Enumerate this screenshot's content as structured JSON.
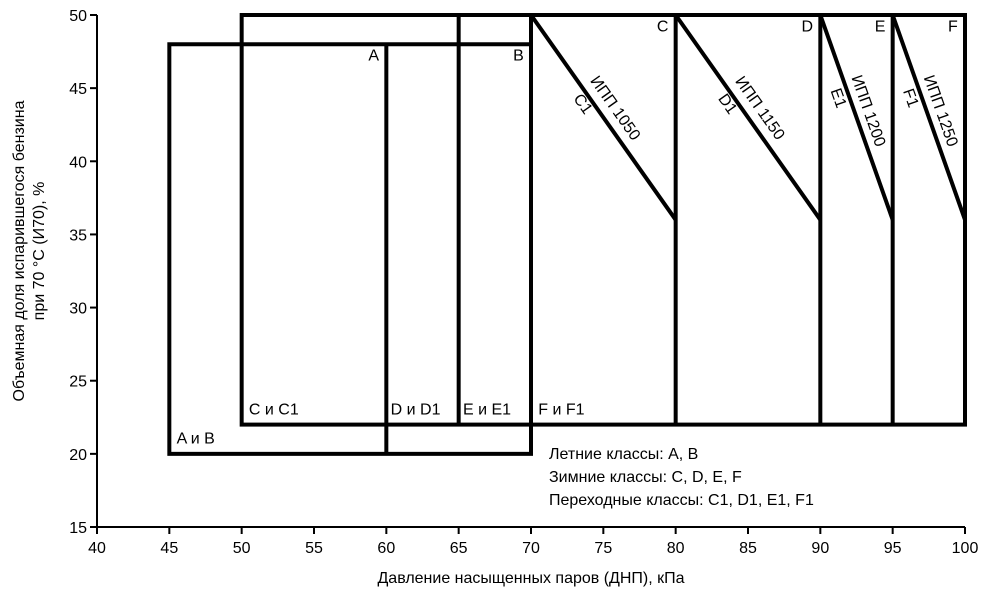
{
  "chart_data": {
    "type": "region-diagram",
    "xlabel": "Давление насыщенных паров (ДНП), кПа",
    "ylabel_lines": [
      "Объемная доля испарившегося бензина",
      "при 70 °C (И70), %"
    ],
    "xlim": [
      40,
      100
    ],
    "ylim": [
      15,
      50
    ],
    "xticks": [
      "40",
      "45",
      "50",
      "55",
      "60",
      "65",
      "70",
      "75",
      "80",
      "85",
      "90",
      "95",
      "100"
    ],
    "yticks": [
      "15",
      "20",
      "25",
      "30",
      "35",
      "40",
      "45",
      "50"
    ],
    "regions": [
      {
        "id": "A-B",
        "x": [
          45,
          70
        ],
        "y": [
          20,
          48
        ]
      },
      {
        "id": "C-F",
        "x": [
          50,
          100
        ],
        "y": [
          22,
          50
        ]
      }
    ],
    "dividers": [
      {
        "x": 60,
        "y": [
          20,
          48
        ]
      },
      {
        "x": 65,
        "y": [
          22,
          50
        ]
      },
      {
        "x": 70,
        "y": [
          22,
          50
        ]
      },
      {
        "x": 80,
        "y": [
          22,
          50
        ]
      },
      {
        "x": 90,
        "y": [
          22,
          50
        ]
      },
      {
        "x": 95,
        "y": [
          22,
          50
        ]
      }
    ],
    "diagonals": [
      {
        "from": [
          70,
          50
        ],
        "to": [
          80,
          36
        ]
      },
      {
        "from": [
          80,
          50
        ],
        "to": [
          90,
          36
        ]
      },
      {
        "from": [
          90,
          50
        ],
        "to": [
          95,
          36
        ]
      },
      {
        "from": [
          95,
          50
        ],
        "to": [
          100,
          36
        ]
      }
    ],
    "class_labels": [
      {
        "text": "A",
        "x": 59.5,
        "y": 47.6
      },
      {
        "text": "B",
        "x": 69.5,
        "y": 47.6
      },
      {
        "text": "C",
        "x": 79.5,
        "y": 49.6
      },
      {
        "text": "D",
        "x": 89.5,
        "y": 49.6
      },
      {
        "text": "E",
        "x": 94.5,
        "y": 49.6
      },
      {
        "text": "F",
        "x": 99.5,
        "y": 49.6
      },
      {
        "text": "A и B",
        "x": 45.5,
        "y": 20.7
      },
      {
        "text": "C и C1",
        "x": 50.5,
        "y": 22.7
      },
      {
        "text": "D и D1",
        "x": 60.3,
        "y": 22.7
      },
      {
        "text": "E и E1",
        "x": 65.3,
        "y": 22.7
      },
      {
        "text": "F и F1",
        "x": 70.5,
        "y": 22.7
      }
    ],
    "diag_labels": [
      {
        "top": "ИПП 1050",
        "bottom": "C1",
        "x": 75.2,
        "y": 43.2
      },
      {
        "top": "ИПП 1150",
        "bottom": "D1",
        "x": 85.2,
        "y": 43.2
      },
      {
        "top": "ИПП 1200",
        "bottom": "E1",
        "x": 92.6,
        "y": 43.2
      },
      {
        "top": "ИПП 1250",
        "bottom": "F1",
        "x": 97.6,
        "y": 43.2
      }
    ],
    "notes": [
      "Летние классы: A, B",
      "Зимние классы: C, D, E, F",
      "Переходные классы: C1, D1, E1, F1"
    ]
  }
}
